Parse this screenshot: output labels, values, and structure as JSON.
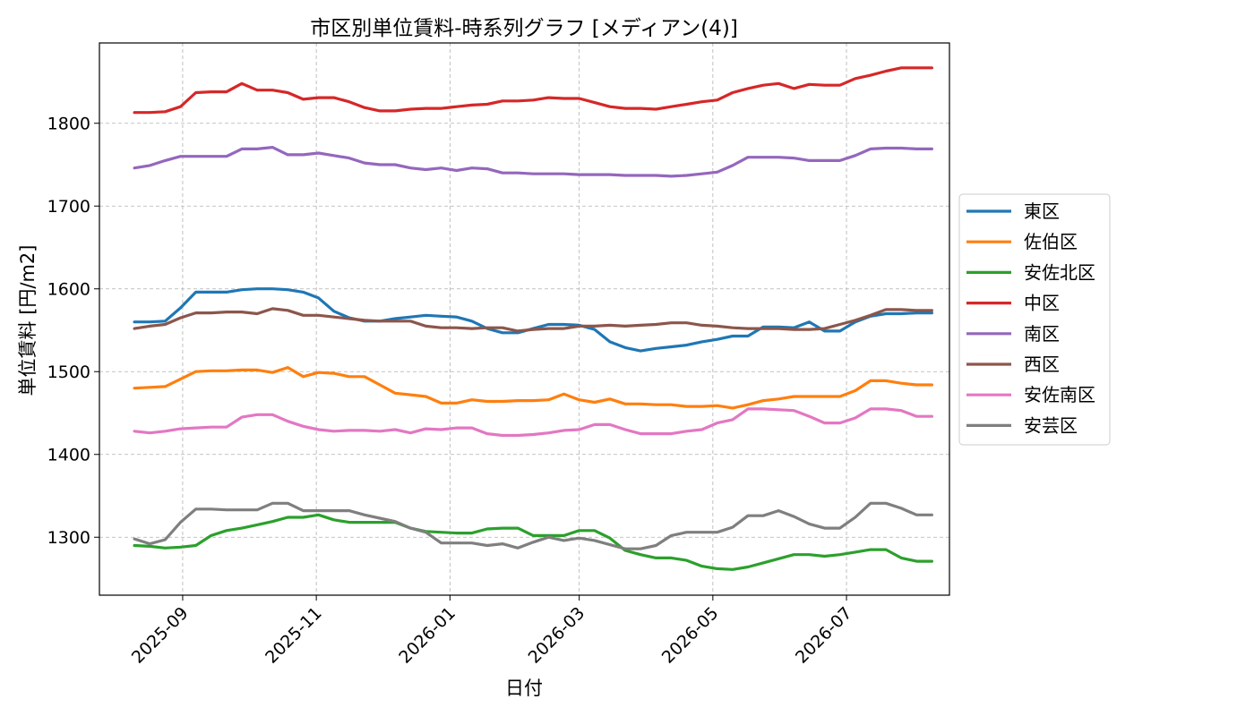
{
  "chart_data": {
    "type": "line",
    "title": "市区別単位賃料-時系列グラフ [メディアン(4)]",
    "xlabel": "日付",
    "ylabel": "単位賃料 [円/m2]",
    "x_tick_labels": [
      "2025-09",
      "2025-11",
      "2026-01",
      "2026-03",
      "2026-05",
      "2026-07"
    ],
    "x_tick_dates": [
      "2025-09-01",
      "2025-11-01",
      "2026-01-01",
      "2026-03-01",
      "2026-05-01",
      "2026-07-01"
    ],
    "xlim": [
      "2025-07-25",
      "2026-08-17"
    ],
    "y_ticks": [
      1300,
      1400,
      1500,
      1600,
      1700,
      1800
    ],
    "ylim": [
      1230,
      1897
    ],
    "grid": true,
    "legend_position": "right",
    "x": [
      "2025-08-10",
      "2025-08-17",
      "2025-08-24",
      "2025-08-31",
      "2025-09-07",
      "2025-09-14",
      "2025-09-21",
      "2025-09-28",
      "2025-10-05",
      "2025-10-12",
      "2025-10-19",
      "2025-10-26",
      "2025-11-02",
      "2025-11-09",
      "2025-11-16",
      "2025-11-23",
      "2025-11-30",
      "2025-12-07",
      "2025-12-14",
      "2025-12-21",
      "2025-12-28",
      "2026-01-04",
      "2026-01-11",
      "2026-01-18",
      "2026-01-25",
      "2026-02-01",
      "2026-02-08",
      "2026-02-15",
      "2026-02-22",
      "2026-03-01",
      "2026-03-08",
      "2026-03-15",
      "2026-03-22",
      "2026-03-29",
      "2026-04-05",
      "2026-04-12",
      "2026-04-19",
      "2026-04-26",
      "2026-05-03",
      "2026-05-10",
      "2026-05-17",
      "2026-05-24",
      "2026-05-31",
      "2026-06-07",
      "2026-06-14",
      "2026-06-21",
      "2026-06-28",
      "2026-07-05",
      "2026-07-12",
      "2026-07-19",
      "2026-07-26",
      "2026-08-02",
      "2026-08-09"
    ],
    "series": [
      {
        "name": "東区",
        "color": "#1f77b4",
        "values": [
          1560,
          1560,
          1561,
          1577,
          1596,
          1596,
          1596,
          1599,
          1600,
          1600,
          1599,
          1596,
          1589,
          1573,
          1565,
          1561,
          1561,
          1564,
          1566,
          1568,
          1567,
          1566,
          1561,
          1552,
          1547,
          1547,
          1552,
          1557,
          1557,
          1556,
          1551,
          1536,
          1529,
          1525,
          1528,
          1530,
          1532,
          1536,
          1539,
          1543,
          1543,
          1554,
          1554,
          1553,
          1560,
          1549,
          1549,
          1560,
          1567,
          1570,
          1570,
          1571,
          1571
        ]
      },
      {
        "name": "佐伯区",
        "color": "#ff7f0e",
        "values": [
          1480,
          1481,
          1482,
          1491,
          1500,
          1501,
          1501,
          1502,
          1502,
          1499,
          1505,
          1494,
          1499,
          1498,
          1494,
          1494,
          1484,
          1474,
          1472,
          1470,
          1462,
          1462,
          1466,
          1464,
          1464,
          1465,
          1465,
          1466,
          1473,
          1466,
          1463,
          1467,
          1461,
          1461,
          1460,
          1460,
          1458,
          1458,
          1459,
          1456,
          1460,
          1465,
          1467,
          1470,
          1470,
          1470,
          1470,
          1477,
          1489,
          1489,
          1486,
          1484,
          1484
        ]
      },
      {
        "name": "安佐北区",
        "color": "#2ca02c",
        "values": [
          1290,
          1289,
          1287,
          1288,
          1290,
          1302,
          1308,
          1311,
          1315,
          1319,
          1324,
          1324,
          1327,
          1321,
          1318,
          1318,
          1318,
          1318,
          1311,
          1307,
          1306,
          1305,
          1305,
          1310,
          1311,
          1311,
          1302,
          1302,
          1302,
          1308,
          1308,
          1299,
          1284,
          1279,
          1275,
          1275,
          1272,
          1265,
          1262,
          1261,
          1264,
          1269,
          1274,
          1279,
          1279,
          1277,
          1279,
          1282,
          1285,
          1285,
          1275,
          1271,
          1271
        ]
      },
      {
        "name": "中区",
        "color": "#d62728",
        "values": [
          1813,
          1813,
          1814,
          1820,
          1837,
          1838,
          1838,
          1848,
          1840,
          1840,
          1837,
          1829,
          1831,
          1831,
          1826,
          1819,
          1815,
          1815,
          1817,
          1818,
          1818,
          1820,
          1822,
          1823,
          1827,
          1827,
          1828,
          1831,
          1830,
          1830,
          1825,
          1820,
          1818,
          1818,
          1817,
          1820,
          1823,
          1826,
          1828,
          1837,
          1842,
          1846,
          1848,
          1842,
          1847,
          1846,
          1846,
          1854,
          1858,
          1863,
          1867,
          1867,
          1867
        ]
      },
      {
        "name": "南区",
        "color": "#9467bd",
        "values": [
          1746,
          1749,
          1755,
          1760,
          1760,
          1760,
          1760,
          1769,
          1769,
          1771,
          1762,
          1762,
          1764,
          1761,
          1758,
          1752,
          1750,
          1750,
          1746,
          1744,
          1746,
          1743,
          1746,
          1745,
          1740,
          1740,
          1739,
          1739,
          1739,
          1738,
          1738,
          1738,
          1737,
          1737,
          1737,
          1736,
          1737,
          1739,
          1741,
          1749,
          1759,
          1759,
          1759,
          1758,
          1755,
          1755,
          1755,
          1761,
          1769,
          1770,
          1770,
          1769,
          1769
        ]
      },
      {
        "name": "西区",
        "color": "#8c564b",
        "values": [
          1552,
          1555,
          1557,
          1565,
          1571,
          1571,
          1572,
          1572,
          1570,
          1576,
          1574,
          1568,
          1568,
          1566,
          1564,
          1562,
          1561,
          1561,
          1561,
          1555,
          1553,
          1553,
          1552,
          1553,
          1553,
          1549,
          1551,
          1552,
          1552,
          1555,
          1555,
          1556,
          1555,
          1556,
          1557,
          1559,
          1559,
          1556,
          1555,
          1553,
          1552,
          1552,
          1552,
          1551,
          1551,
          1552,
          1557,
          1562,
          1568,
          1575,
          1575,
          1574,
          1574
        ]
      },
      {
        "name": "安佐南区",
        "color": "#e377c2",
        "values": [
          1428,
          1426,
          1428,
          1431,
          1432,
          1433,
          1433,
          1445,
          1448,
          1448,
          1440,
          1434,
          1430,
          1428,
          1429,
          1429,
          1428,
          1430,
          1426,
          1431,
          1430,
          1432,
          1432,
          1425,
          1423,
          1423,
          1424,
          1426,
          1429,
          1430,
          1436,
          1436,
          1430,
          1425,
          1425,
          1425,
          1428,
          1430,
          1438,
          1442,
          1455,
          1455,
          1454,
          1453,
          1446,
          1438,
          1438,
          1444,
          1455,
          1455,
          1453,
          1446,
          1446
        ]
      },
      {
        "name": "安芸区",
        "color": "#7f7f7f",
        "values": [
          1298,
          1292,
          1297,
          1318,
          1334,
          1334,
          1333,
          1333,
          1333,
          1341,
          1341,
          1332,
          1332,
          1332,
          1332,
          1327,
          1323,
          1319,
          1311,
          1306,
          1293,
          1293,
          1293,
          1290,
          1292,
          1287,
          1294,
          1300,
          1296,
          1299,
          1296,
          1291,
          1286,
          1286,
          1290,
          1302,
          1306,
          1306,
          1306,
          1312,
          1326,
          1326,
          1332,
          1325,
          1316,
          1311,
          1311,
          1324,
          1341,
          1341,
          1335,
          1327,
          1327
        ]
      }
    ]
  }
}
